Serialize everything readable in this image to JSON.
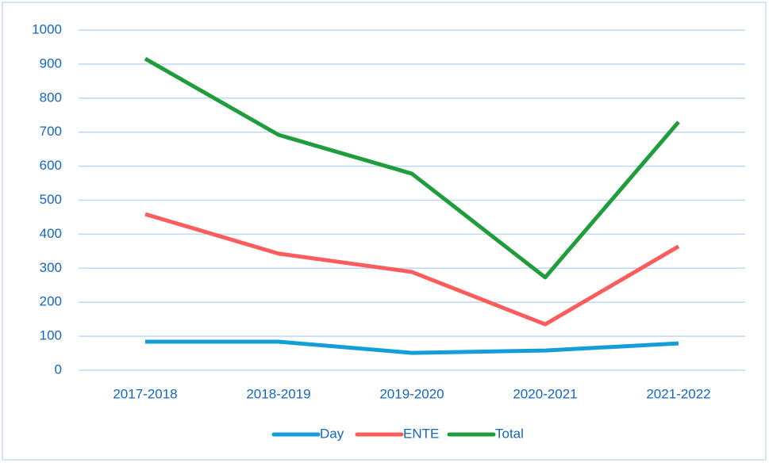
{
  "chart_data": {
    "type": "line",
    "categories": [
      "2017-2018",
      "2018-2019",
      "2019-2020",
      "2020-2021",
      "2021-2022"
    ],
    "series": [
      {
        "name": "Day",
        "color": "#139ed8",
        "values": [
          84,
          84,
          51,
          58,
          79
        ]
      },
      {
        "name": "ENTE",
        "color": "#fb5d5d",
        "values": [
          459,
          343,
          289,
          135,
          364
        ]
      },
      {
        "name": "Total",
        "color": "#1f9c3b",
        "values": [
          916,
          692,
          578,
          273,
          730
        ]
      }
    ],
    "ylim": [
      0,
      1000
    ],
    "yticks": [
      0,
      100,
      200,
      300,
      400,
      500,
      600,
      700,
      800,
      900,
      1000
    ],
    "grid": true,
    "legend": "bottom"
  }
}
